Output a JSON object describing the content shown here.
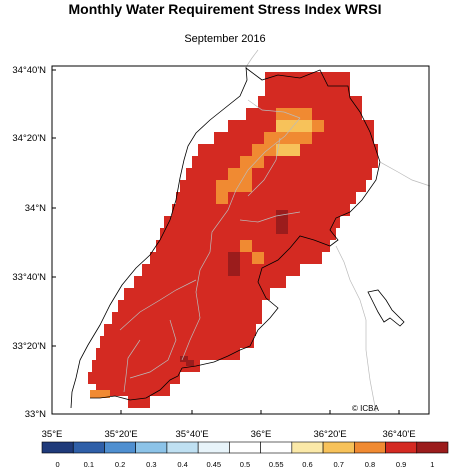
{
  "title": "Monthly Water Requirement Stress Index WRSI",
  "subtitle": "September 2016",
  "credit": "© ICBA",
  "lat_labels": [
    "34°40'N",
    "34°20'N",
    "34°N",
    "33°40'N",
    "33°20'N",
    "33°N"
  ],
  "lon_labels": [
    "35°E",
    "35°20'E",
    "35°40'E",
    "36°E",
    "36°20'E",
    "36°40'E"
  ],
  "colorbar": {
    "labels": [
      "0",
      "0.1",
      "0.2",
      "0.3",
      "0.4",
      "0.45",
      "0.5",
      "0.55",
      "0.6",
      "0.7",
      "0.8",
      "0.9",
      "1"
    ],
    "colors": [
      "#1f3a7a",
      "#2f5fa8",
      "#4f8fd0",
      "#8cc3e8",
      "#bfe0f2",
      "#e8f4fa",
      "#ffffff",
      "#ffffff",
      "#fbe9a8",
      "#f7c25a",
      "#f08a32",
      "#d42a22",
      "#9b1c1c"
    ]
  },
  "colors": {
    "main_cell": "#d42a22",
    "orange_cell": "#f08a32",
    "light_orange_cell": "#f7c25a",
    "dark_cell": "#9b1c1c",
    "coast": "#000000",
    "border": "#bbbbbb"
  }
}
